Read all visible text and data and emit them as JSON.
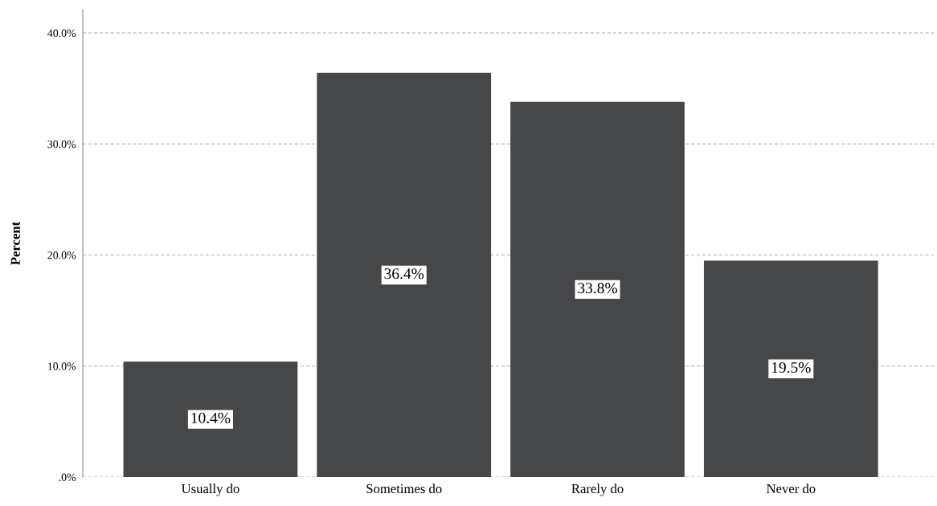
{
  "chart_data": {
    "type": "bar",
    "ylabel": "Percent",
    "categories": [
      "Usually do",
      "Sometimes do",
      "Rarely do",
      "Never do"
    ],
    "values": [
      10.4,
      36.4,
      33.8,
      19.5
    ],
    "value_labels": [
      "10.4%",
      "36.4%",
      "33.8%",
      "19.5%"
    ],
    "color": "#464749",
    "ylim": [
      0,
      42.1
    ],
    "yticks": [
      {
        "value": 0,
        "label": ".0%"
      },
      {
        "value": 10,
        "label": "10.0%"
      },
      {
        "value": 20,
        "label": "20.0%"
      },
      {
        "value": 30,
        "label": "30.0%"
      },
      {
        "value": 40,
        "label": "40.0%"
      }
    ],
    "grid": "y",
    "legend": false
  }
}
